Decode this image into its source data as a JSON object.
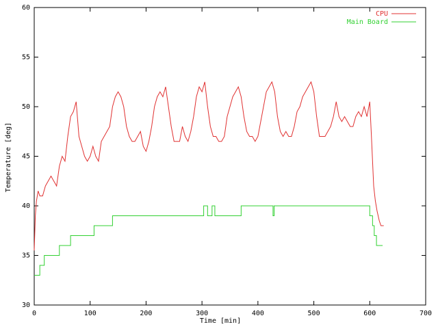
{
  "chart_data": {
    "type": "line",
    "xlabel": "Time [min]",
    "ylabel": "Temperature [deg]",
    "xlim": [
      0,
      700
    ],
    "xticks": [
      0,
      100,
      200,
      300,
      400,
      500,
      600,
      700
    ],
    "ylim": [
      30,
      60
    ],
    "yticks": [
      30,
      35,
      40,
      45,
      50,
      55,
      60
    ],
    "legend": "top-right",
    "series": [
      {
        "name": "CPU",
        "color": "#e03030",
        "x": [
          0,
          2,
          4,
          7,
          10,
          15,
          20,
          25,
          30,
          35,
          40,
          45,
          50,
          55,
          60,
          65,
          70,
          75,
          80,
          85,
          90,
          95,
          100,
          105,
          110,
          115,
          120,
          125,
          130,
          135,
          140,
          145,
          150,
          155,
          160,
          165,
          170,
          175,
          180,
          185,
          190,
          195,
          200,
          205,
          210,
          215,
          220,
          225,
          230,
          235,
          240,
          245,
          250,
          255,
          260,
          265,
          270,
          275,
          280,
          285,
          290,
          295,
          300,
          305,
          310,
          315,
          320,
          325,
          330,
          335,
          340,
          345,
          350,
          355,
          360,
          365,
          370,
          375,
          380,
          385,
          390,
          395,
          400,
          405,
          410,
          415,
          420,
          425,
          430,
          435,
          440,
          445,
          450,
          455,
          460,
          465,
          470,
          475,
          480,
          485,
          490,
          495,
          500,
          505,
          510,
          515,
          520,
          525,
          530,
          535,
          540,
          545,
          550,
          555,
          560,
          565,
          570,
          575,
          580,
          585,
          590,
          595,
          600,
          603,
          607,
          610,
          613,
          617,
          620,
          625
        ],
        "values": [
          35.5,
          39,
          40.5,
          41.5,
          41,
          41,
          42,
          42.5,
          43,
          42.5,
          42,
          44,
          45,
          44.5,
          47,
          49,
          49.5,
          50.5,
          47,
          46,
          45,
          44.5,
          45,
          46,
          45,
          44.5,
          46.5,
          47,
          47.5,
          48,
          50,
          51,
          51.5,
          51,
          50,
          48,
          47,
          46.5,
          46.5,
          47,
          47.5,
          46,
          45.5,
          46.5,
          48,
          50,
          51,
          51.5,
          51,
          52,
          50,
          48,
          46.5,
          46.5,
          46.5,
          48,
          47,
          46.5,
          47.5,
          49,
          51,
          52,
          51.5,
          52.5,
          50,
          48,
          47,
          47,
          46.5,
          46.5,
          47,
          49,
          50,
          51,
          51.5,
          52,
          51,
          49,
          47.5,
          47,
          47,
          46.5,
          47,
          48.5,
          50,
          51.5,
          52,
          52.5,
          51.5,
          49,
          47.5,
          47,
          47.5,
          47,
          47,
          48,
          49.5,
          50,
          51,
          51.5,
          52,
          52.5,
          51.5,
          49,
          47,
          47,
          47,
          47.5,
          48,
          49,
          50.5,
          49,
          48.5,
          49,
          48.5,
          48,
          48,
          49,
          49.5,
          49,
          50,
          49,
          50.5,
          47,
          42,
          40.5,
          39.5,
          38.5,
          38,
          38
        ]
      },
      {
        "name": "Main Board",
        "color": "#30d030",
        "x": [
          0,
          10,
          10,
          18,
          18,
          45,
          45,
          65,
          65,
          107,
          107,
          140,
          140,
          303,
          303,
          310,
          310,
          318,
          318,
          323,
          323,
          370,
          370,
          427,
          427,
          429,
          429,
          600,
          600,
          605,
          605,
          608,
          608,
          612,
          612,
          617,
          617,
          623
        ],
        "values": [
          33,
          33,
          34,
          34,
          35,
          35,
          36,
          36,
          37,
          37,
          38,
          38,
          39,
          39,
          40,
          40,
          39,
          39,
          40,
          40,
          39,
          39,
          40,
          40,
          39,
          39,
          40,
          40,
          39,
          39,
          38,
          38,
          37,
          37,
          36,
          36,
          36,
          36
        ]
      }
    ]
  }
}
